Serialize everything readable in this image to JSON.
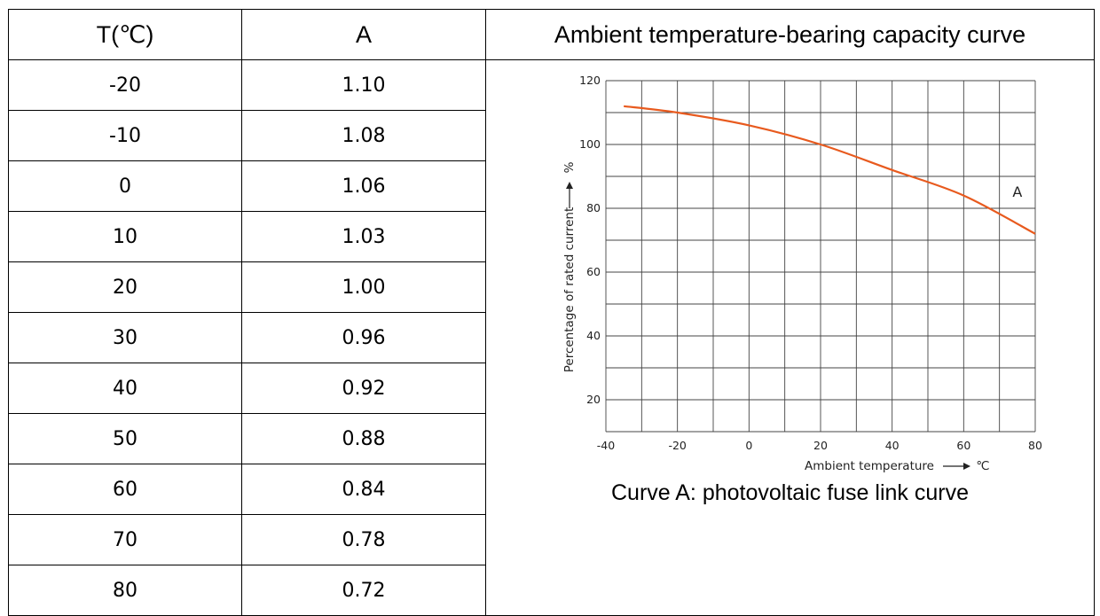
{
  "table": {
    "col_temp": "T(℃)",
    "col_a": "A",
    "rows": [
      {
        "t": "-20",
        "a": "1.10"
      },
      {
        "t": "-10",
        "a": "1.08"
      },
      {
        "t": "0",
        "a": "1.06"
      },
      {
        "t": "10",
        "a": "1.03"
      },
      {
        "t": "20",
        "a": "1.00"
      },
      {
        "t": "30",
        "a": "0.96"
      },
      {
        "t": "40",
        "a": "0.92"
      },
      {
        "t": "50",
        "a": "0.88"
      },
      {
        "t": "60",
        "a": "0.84"
      },
      {
        "t": "70",
        "a": "0.78"
      },
      {
        "t": "80",
        "a": "0.72"
      }
    ]
  },
  "chart_header": "Ambient temperature-bearing capacity curve",
  "caption": "Curve A: photovoltaic fuse link curve",
  "chart_data": {
    "type": "line",
    "title": "",
    "xlabel": "Ambient temperature",
    "xunit": "℃",
    "ylabel": "Percentage of rated current",
    "yunit": "%",
    "xlim": [
      -40,
      80
    ],
    "ylim": [
      10,
      120
    ],
    "xticks": [
      -40,
      -20,
      0,
      20,
      40,
      60,
      80
    ],
    "yticks": [
      20,
      40,
      60,
      80,
      100,
      120
    ],
    "grid": true,
    "line_color": "#e85a1e",
    "series": [
      {
        "name": "A",
        "x": [
          -35,
          -20,
          0,
          20,
          40,
          60,
          80
        ],
        "y": [
          112,
          110,
          106,
          100,
          92,
          84,
          72
        ]
      }
    ]
  }
}
